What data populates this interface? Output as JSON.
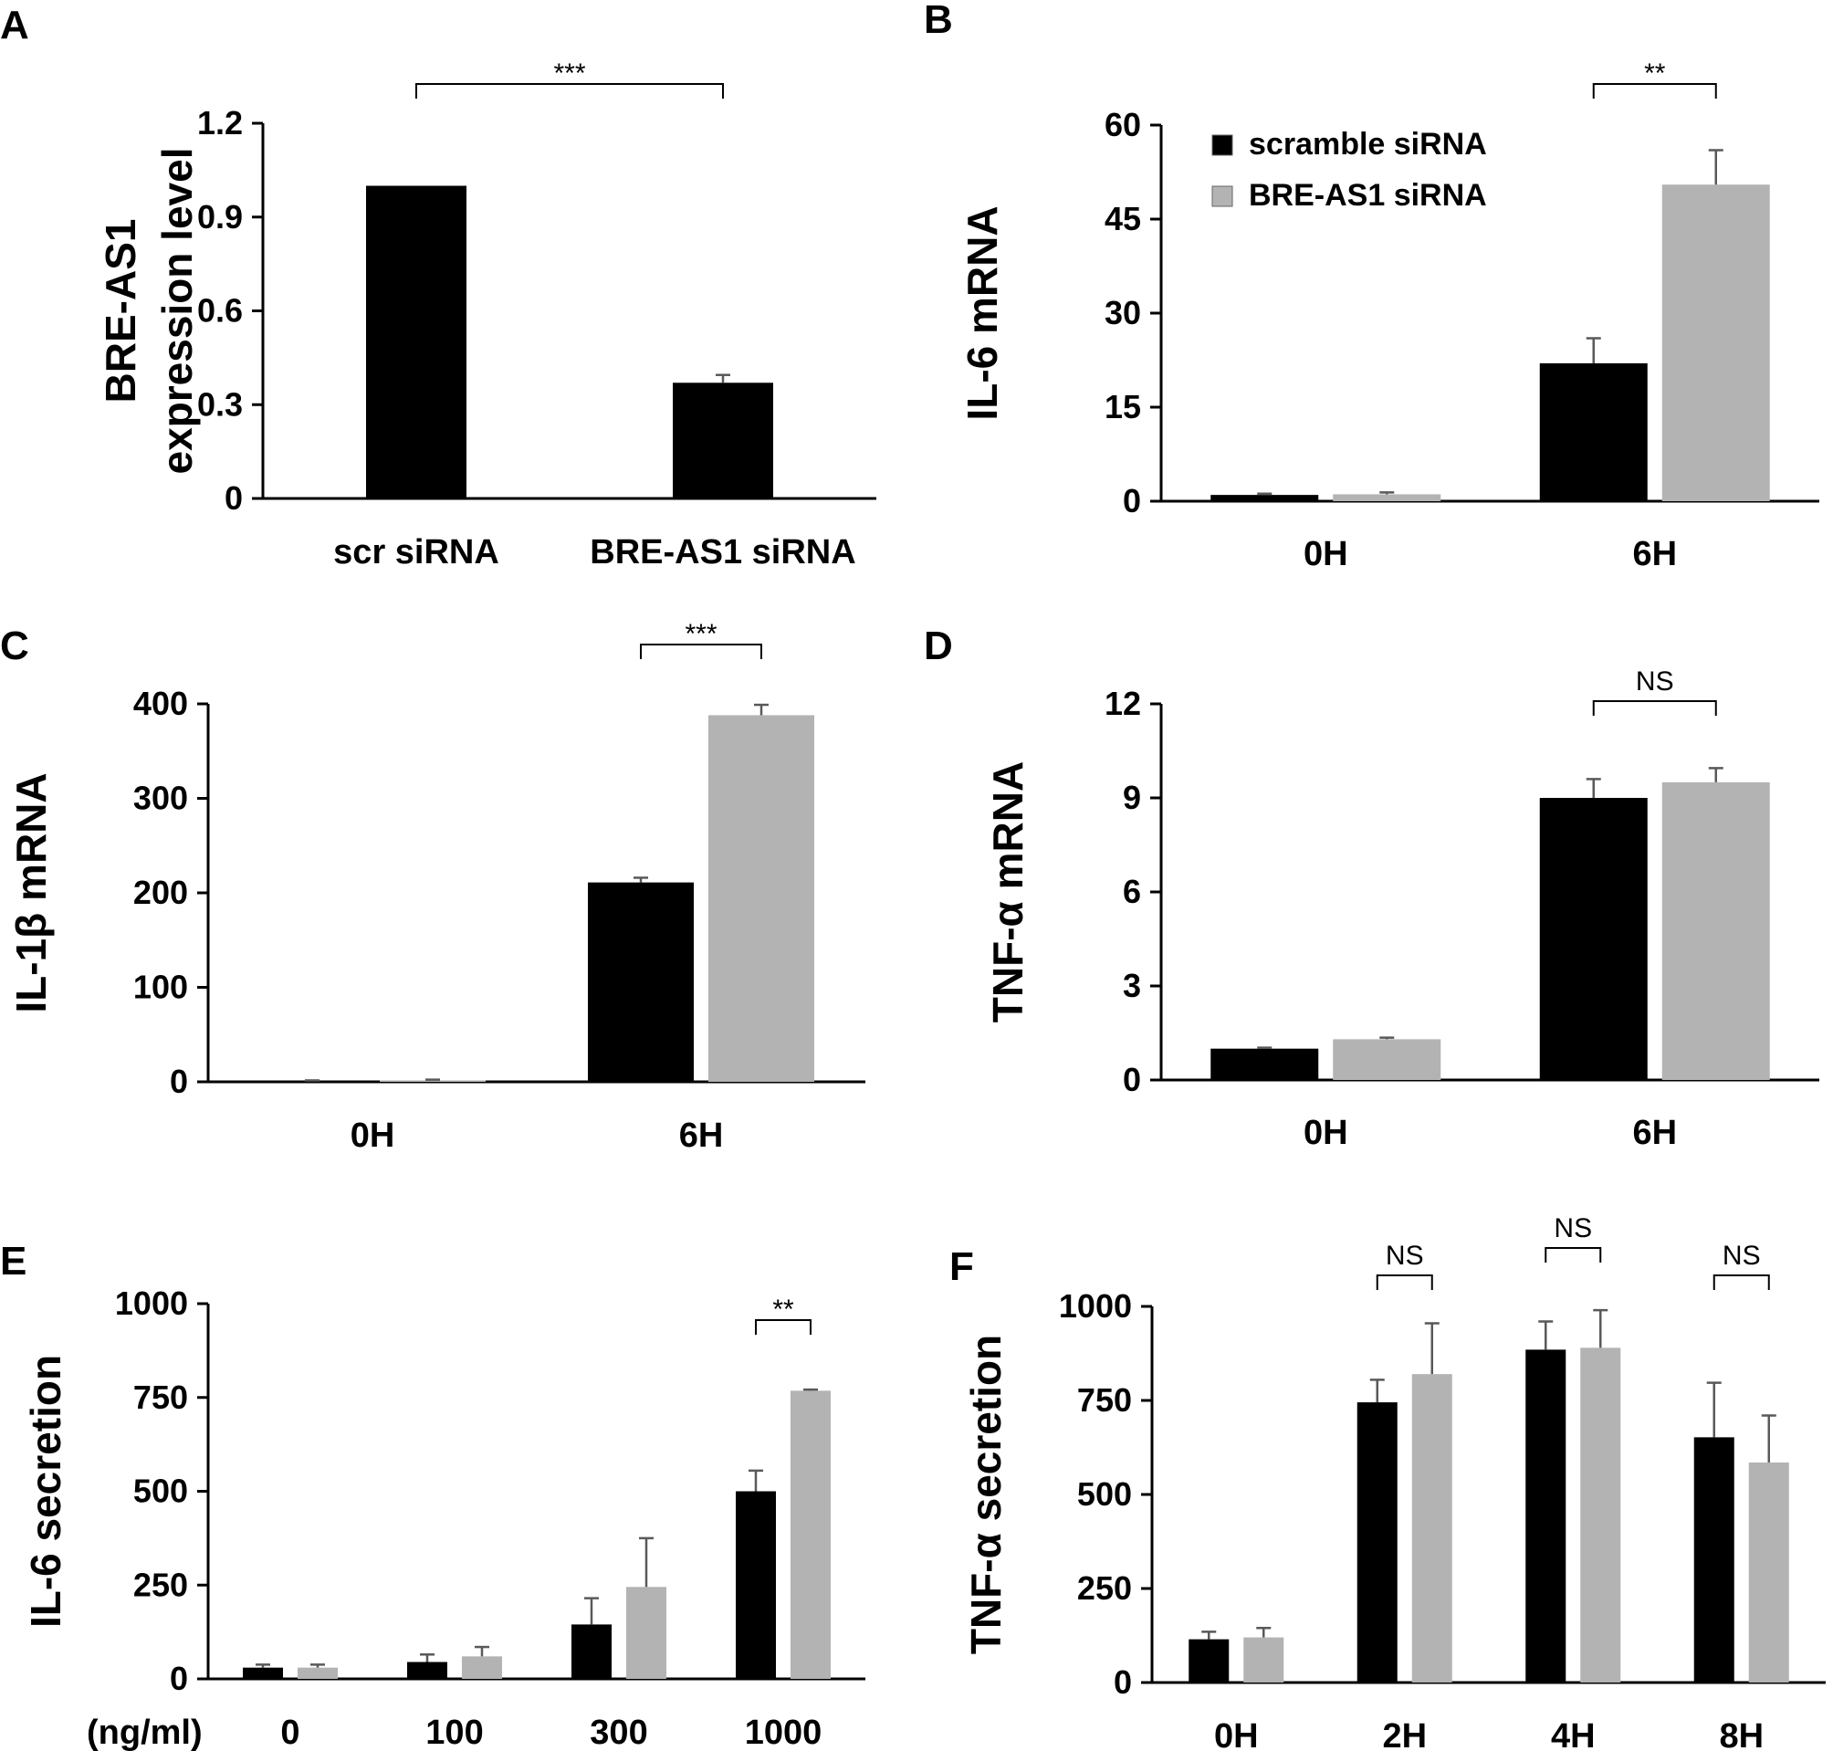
{
  "colors": {
    "scramble": "#000000",
    "bre_as1": "#b3b3b3",
    "axis": "#000000",
    "error_bar": "#595959"
  },
  "legend": [
    {
      "label": "scramble siRNA",
      "color": "#000000"
    },
    {
      "label": "BRE-AS1 siRNA",
      "color": "#b3b3b3"
    }
  ],
  "chart_data": [
    {
      "panel": "A",
      "type": "bar",
      "ylabel": [
        "BRE-AS1",
        "expression level"
      ],
      "ylim": [
        0,
        1.2
      ],
      "yticks": [
        "0",
        "0.3",
        "0.6",
        "0.9",
        "1.2"
      ],
      "xlabel_prefix": "",
      "categories": [
        "scr siRNA",
        "BRE-AS1 siRNA"
      ],
      "series": [
        {
          "values": [
            1.0,
            0.37
          ],
          "errors": [
            0,
            0.025
          ]
        }
      ],
      "significance": [
        {
          "label": "***",
          "from": 0,
          "to": 1
        }
      ]
    },
    {
      "panel": "B",
      "type": "bar",
      "ylabel": [
        "IL-6 mRNA"
      ],
      "ylim": [
        0,
        60
      ],
      "yticks": [
        "0",
        "15",
        "30",
        "45",
        "60"
      ],
      "xlabel_prefix": "",
      "categories": [
        "0H",
        "6H"
      ],
      "series": [
        {
          "name": "scramble siRNA",
          "values": [
            1.0,
            22
          ],
          "errors": [
            0.2,
            4
          ]
        },
        {
          "name": "BRE-AS1 siRNA",
          "values": [
            1.1,
            50.5
          ],
          "errors": [
            0.3,
            5.5
          ]
        }
      ],
      "significance": [
        {
          "label": "**",
          "category": 1
        }
      ],
      "legend": "top-left"
    },
    {
      "panel": "C",
      "type": "bar",
      "ylabel": [
        "IL-1β mRNA"
      ],
      "ylim": [
        0,
        400
      ],
      "yticks": [
        "0",
        "100",
        "200",
        "300",
        "400"
      ],
      "xlabel_prefix": "",
      "categories": [
        "0H",
        "6H"
      ],
      "series": [
        {
          "name": "scramble siRNA",
          "values": [
            1,
            211
          ],
          "errors": [
            0.5,
            5
          ]
        },
        {
          "name": "BRE-AS1 siRNA",
          "values": [
            1.5,
            388
          ],
          "errors": [
            0.8,
            11
          ]
        }
      ],
      "significance": [
        {
          "label": "***",
          "category": 1
        }
      ]
    },
    {
      "panel": "D",
      "type": "bar",
      "ylabel": [
        "TNF-α mRNA"
      ],
      "ylim": [
        0,
        12
      ],
      "yticks": [
        "0",
        "3",
        "6",
        "9",
        "12"
      ],
      "xlabel_prefix": "",
      "categories": [
        "0H",
        "6H"
      ],
      "series": [
        {
          "name": "scramble siRNA",
          "values": [
            1.0,
            9.0
          ],
          "errors": [
            0.03,
            0.6
          ]
        },
        {
          "name": "BRE-AS1 siRNA",
          "values": [
            1.3,
            9.5
          ],
          "errors": [
            0.05,
            0.45
          ]
        }
      ],
      "significance": [
        {
          "label": "NS",
          "category": 1
        }
      ]
    },
    {
      "panel": "E",
      "type": "bar",
      "ylabel": [
        "IL-6 secretion"
      ],
      "ylim": [
        0,
        1000
      ],
      "yticks": [
        "0",
        "250",
        "500",
        "750",
        "1000"
      ],
      "xlabel_prefix": "(ng/ml)",
      "categories": [
        "0",
        "100",
        "300",
        "1000"
      ],
      "series": [
        {
          "name": "scramble siRNA",
          "values": [
            30,
            45,
            145,
            500
          ],
          "errors": [
            8,
            20,
            70,
            55
          ]
        },
        {
          "name": "BRE-AS1 siRNA",
          "values": [
            30,
            60,
            245,
            768
          ],
          "errors": [
            8,
            25,
            130,
            3
          ]
        }
      ],
      "significance": [
        {
          "label": "**",
          "category": 3
        }
      ]
    },
    {
      "panel": "F",
      "type": "bar",
      "ylabel": [
        "TNF-α secretion"
      ],
      "ylim": [
        0,
        1000
      ],
      "yticks": [
        "0",
        "250",
        "500",
        "750",
        "1000"
      ],
      "xlabel_prefix": "",
      "categories": [
        "0H",
        "2H",
        "4H",
        "8H"
      ],
      "series": [
        {
          "name": "scramble siRNA",
          "values": [
            115,
            745,
            885,
            652
          ],
          "errors": [
            20,
            60,
            75,
            145
          ]
        },
        {
          "name": "BRE-AS1 siRNA",
          "values": [
            120,
            820,
            890,
            585
          ],
          "errors": [
            25,
            135,
            100,
            125
          ]
        }
      ],
      "significance": [
        {
          "label": "NS",
          "category": 1
        },
        {
          "label": "NS",
          "category": 2
        },
        {
          "label": "NS",
          "category": 3
        }
      ]
    }
  ]
}
